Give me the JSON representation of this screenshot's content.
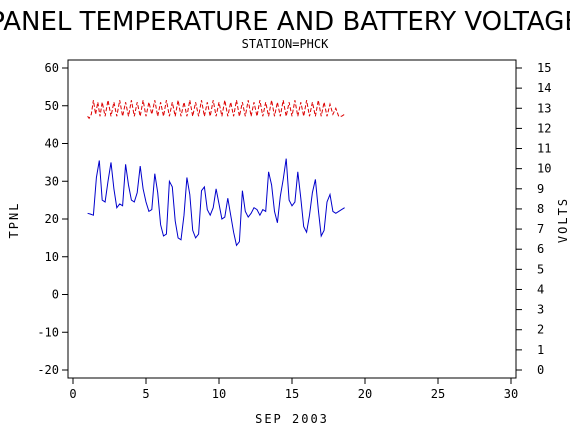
{
  "chart_data": {
    "type": "line",
    "title": "PANEL TEMPERATURE AND BATTERY VOLTAGE",
    "subtitle": "STATION=PHCK",
    "xlabel": "SEP 2003",
    "ylabel_left": "TPNL",
    "ylabel_right": "VOLTS",
    "xlim": [
      0,
      30
    ],
    "ylim_left": [
      -20,
      60
    ],
    "ylim_right": [
      0,
      15
    ],
    "x_ticks": [
      "0",
      "5",
      "10",
      "15",
      "20",
      "25",
      "30"
    ],
    "y_ticks_left": [
      "-20",
      "-10",
      "0",
      "10",
      "20",
      "30",
      "40",
      "50",
      "60"
    ],
    "y_ticks_right": [
      "0",
      "1",
      "2",
      "3",
      "4",
      "5",
      "6",
      "7",
      "8",
      "9",
      "10",
      "11",
      "12",
      "13",
      "14",
      "15"
    ],
    "grid": false,
    "series": [
      {
        "axis": "left",
        "color": "#0000cc",
        "style": "solid",
        "points": [
          [
            1.0,
            21.5
          ],
          [
            1.2,
            21.3
          ],
          [
            1.4,
            21.0
          ],
          [
            1.6,
            31.0
          ],
          [
            1.8,
            35.5
          ],
          [
            2.0,
            25.0
          ],
          [
            2.2,
            24.5
          ],
          [
            2.4,
            30.0
          ],
          [
            2.6,
            35.0
          ],
          [
            2.8,
            28.0
          ],
          [
            3.0,
            23.0
          ],
          [
            3.2,
            24.0
          ],
          [
            3.4,
            23.5
          ],
          [
            3.6,
            34.5
          ],
          [
            3.8,
            29.0
          ],
          [
            4.0,
            25.0
          ],
          [
            4.2,
            24.5
          ],
          [
            4.4,
            27.0
          ],
          [
            4.6,
            34.0
          ],
          [
            4.8,
            28.0
          ],
          [
            5.0,
            24.5
          ],
          [
            5.2,
            22.0
          ],
          [
            5.4,
            22.5
          ],
          [
            5.6,
            32.0
          ],
          [
            5.8,
            27.0
          ],
          [
            6.0,
            18.5
          ],
          [
            6.2,
            15.5
          ],
          [
            6.4,
            16.0
          ],
          [
            6.6,
            30.0
          ],
          [
            6.8,
            28.5
          ],
          [
            7.0,
            19.5
          ],
          [
            7.2,
            15.0
          ],
          [
            7.4,
            14.5
          ],
          [
            7.6,
            21.0
          ],
          [
            7.8,
            31.0
          ],
          [
            8.0,
            26.5
          ],
          [
            8.2,
            17.0
          ],
          [
            8.4,
            15.0
          ],
          [
            8.6,
            16.0
          ],
          [
            8.8,
            27.5
          ],
          [
            9.0,
            28.5
          ],
          [
            9.2,
            22.5
          ],
          [
            9.4,
            21.0
          ],
          [
            9.6,
            23.0
          ],
          [
            9.8,
            28.0
          ],
          [
            10.0,
            24.0
          ],
          [
            10.2,
            20.0
          ],
          [
            10.4,
            20.5
          ],
          [
            10.6,
            25.5
          ],
          [
            10.8,
            21.0
          ],
          [
            11.0,
            16.5
          ],
          [
            11.2,
            13.0
          ],
          [
            11.4,
            14.0
          ],
          [
            11.6,
            27.5
          ],
          [
            11.8,
            22.0
          ],
          [
            12.0,
            20.5
          ],
          [
            12.2,
            21.5
          ],
          [
            12.4,
            23.0
          ],
          [
            12.6,
            22.5
          ],
          [
            12.8,
            21.0
          ],
          [
            13.0,
            22.5
          ],
          [
            13.2,
            22.0
          ],
          [
            13.4,
            32.5
          ],
          [
            13.6,
            29.0
          ],
          [
            13.8,
            22.0
          ],
          [
            14.0,
            19.0
          ],
          [
            14.2,
            26.0
          ],
          [
            14.4,
            30.5
          ],
          [
            14.6,
            36.0
          ],
          [
            14.8,
            25.0
          ],
          [
            15.0,
            23.5
          ],
          [
            15.2,
            24.5
          ],
          [
            15.4,
            32.5
          ],
          [
            15.6,
            25.5
          ],
          [
            15.8,
            18.0
          ],
          [
            16.0,
            16.5
          ],
          [
            16.2,
            21.0
          ],
          [
            16.4,
            27.0
          ],
          [
            16.6,
            30.5
          ],
          [
            16.8,
            22.5
          ],
          [
            17.0,
            15.5
          ],
          [
            17.2,
            17.0
          ],
          [
            17.4,
            24.5
          ],
          [
            17.6,
            26.5
          ],
          [
            17.8,
            22.0
          ],
          [
            18.0,
            21.5
          ],
          [
            18.2,
            22.0
          ],
          [
            18.4,
            22.5
          ],
          [
            18.6,
            23.0
          ]
        ]
      },
      {
        "axis": "right",
        "color": "#dd0000",
        "style": "dashed",
        "points": [
          [
            1.0,
            12.6
          ],
          [
            1.1,
            12.5
          ],
          [
            1.25,
            12.7
          ],
          [
            1.4,
            13.4
          ],
          [
            1.55,
            12.7
          ],
          [
            1.7,
            13.3
          ],
          [
            1.85,
            12.6
          ],
          [
            2.0,
            13.3
          ],
          [
            2.2,
            12.6
          ],
          [
            2.4,
            13.4
          ],
          [
            2.6,
            12.6
          ],
          [
            2.8,
            13.3
          ],
          [
            3.0,
            12.6
          ],
          [
            3.2,
            13.4
          ],
          [
            3.4,
            12.6
          ],
          [
            3.6,
            13.3
          ],
          [
            3.8,
            12.6
          ],
          [
            4.0,
            13.4
          ],
          [
            4.2,
            12.6
          ],
          [
            4.4,
            13.3
          ],
          [
            4.6,
            12.6
          ],
          [
            4.8,
            13.4
          ],
          [
            5.0,
            12.6
          ],
          [
            5.2,
            13.3
          ],
          [
            5.4,
            12.7
          ],
          [
            5.6,
            13.4
          ],
          [
            5.8,
            12.6
          ],
          [
            6.0,
            13.3
          ],
          [
            6.2,
            12.6
          ],
          [
            6.4,
            13.4
          ],
          [
            6.6,
            12.6
          ],
          [
            6.8,
            13.3
          ],
          [
            7.0,
            12.6
          ],
          [
            7.2,
            13.4
          ],
          [
            7.4,
            12.6
          ],
          [
            7.6,
            13.3
          ],
          [
            7.8,
            12.6
          ],
          [
            8.0,
            13.4
          ],
          [
            8.2,
            12.6
          ],
          [
            8.4,
            13.3
          ],
          [
            8.6,
            12.6
          ],
          [
            8.8,
            13.4
          ],
          [
            9.0,
            12.6
          ],
          [
            9.2,
            13.3
          ],
          [
            9.4,
            12.6
          ],
          [
            9.6,
            13.4
          ],
          [
            9.8,
            12.6
          ],
          [
            10.0,
            13.3
          ],
          [
            10.2,
            12.6
          ],
          [
            10.4,
            13.4
          ],
          [
            10.6,
            12.6
          ],
          [
            10.8,
            13.3
          ],
          [
            11.0,
            12.6
          ],
          [
            11.2,
            13.4
          ],
          [
            11.4,
            12.6
          ],
          [
            11.6,
            13.3
          ],
          [
            11.8,
            12.6
          ],
          [
            12.0,
            13.4
          ],
          [
            12.2,
            12.6
          ],
          [
            12.4,
            13.3
          ],
          [
            12.6,
            12.6
          ],
          [
            12.8,
            13.4
          ],
          [
            13.0,
            12.6
          ],
          [
            13.2,
            13.3
          ],
          [
            13.4,
            12.6
          ],
          [
            13.6,
            13.4
          ],
          [
            13.8,
            12.6
          ],
          [
            14.0,
            13.3
          ],
          [
            14.2,
            12.6
          ],
          [
            14.4,
            13.4
          ],
          [
            14.6,
            12.6
          ],
          [
            14.8,
            13.3
          ],
          [
            15.0,
            12.6
          ],
          [
            15.2,
            13.4
          ],
          [
            15.4,
            12.6
          ],
          [
            15.6,
            13.3
          ],
          [
            15.8,
            12.6
          ],
          [
            16.0,
            13.4
          ],
          [
            16.2,
            12.6
          ],
          [
            16.4,
            13.3
          ],
          [
            16.6,
            12.6
          ],
          [
            16.8,
            13.4
          ],
          [
            17.0,
            12.6
          ],
          [
            17.2,
            13.3
          ],
          [
            17.4,
            12.6
          ],
          [
            17.6,
            13.2
          ],
          [
            17.8,
            12.7
          ],
          [
            18.0,
            13.0
          ],
          [
            18.2,
            12.6
          ],
          [
            18.4,
            12.6
          ],
          [
            18.6,
            12.7
          ]
        ]
      }
    ]
  }
}
